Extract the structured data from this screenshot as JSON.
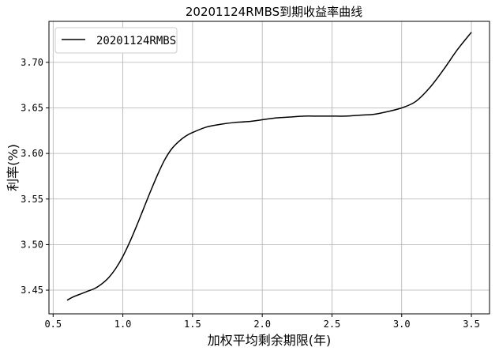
{
  "chart_data": {
    "type": "line",
    "title": "20201124RMBS到期收益率曲线",
    "xlabel": "加权平均剩余期限(年)",
    "ylabel": "利率(%)",
    "xlim": [
      0.47,
      3.63
    ],
    "ylim": [
      3.424,
      3.745
    ],
    "xticks": [
      0.5,
      1.0,
      1.5,
      2.0,
      2.5,
      3.0,
      3.5
    ],
    "xtick_labels": [
      "0.5",
      "1.0",
      "1.5",
      "2.0",
      "2.5",
      "3.0",
      "3.5"
    ],
    "yticks": [
      3.45,
      3.5,
      3.55,
      3.6,
      3.65,
      3.7
    ],
    "ytick_labels": [
      "3.45",
      "3.50",
      "3.55",
      "3.60",
      "3.65",
      "3.70"
    ],
    "grid": true,
    "legend_position": "top-left",
    "series": [
      {
        "name": "20201124RMBS",
        "color": "#000000",
        "x": [
          0.6,
          0.65,
          0.7,
          0.75,
          0.8,
          0.85,
          0.9,
          0.95,
          1.0,
          1.05,
          1.1,
          1.15,
          1.2,
          1.25,
          1.3,
          1.35,
          1.4,
          1.45,
          1.5,
          1.6,
          1.7,
          1.8,
          1.9,
          2.0,
          2.1,
          2.2,
          2.3,
          2.4,
          2.5,
          2.6,
          2.7,
          2.8,
          2.9,
          3.0,
          3.1,
          3.2,
          3.3,
          3.4,
          3.5
        ],
        "y": [
          3.439,
          3.443,
          3.446,
          3.449,
          3.452,
          3.457,
          3.464,
          3.474,
          3.487,
          3.503,
          3.521,
          3.54,
          3.559,
          3.577,
          3.593,
          3.605,
          3.613,
          3.619,
          3.623,
          3.629,
          3.632,
          3.634,
          3.635,
          3.637,
          3.639,
          3.64,
          3.641,
          3.641,
          3.641,
          3.641,
          3.642,
          3.643,
          3.646,
          3.65,
          3.657,
          3.672,
          3.692,
          3.714,
          3.733
        ]
      }
    ]
  }
}
